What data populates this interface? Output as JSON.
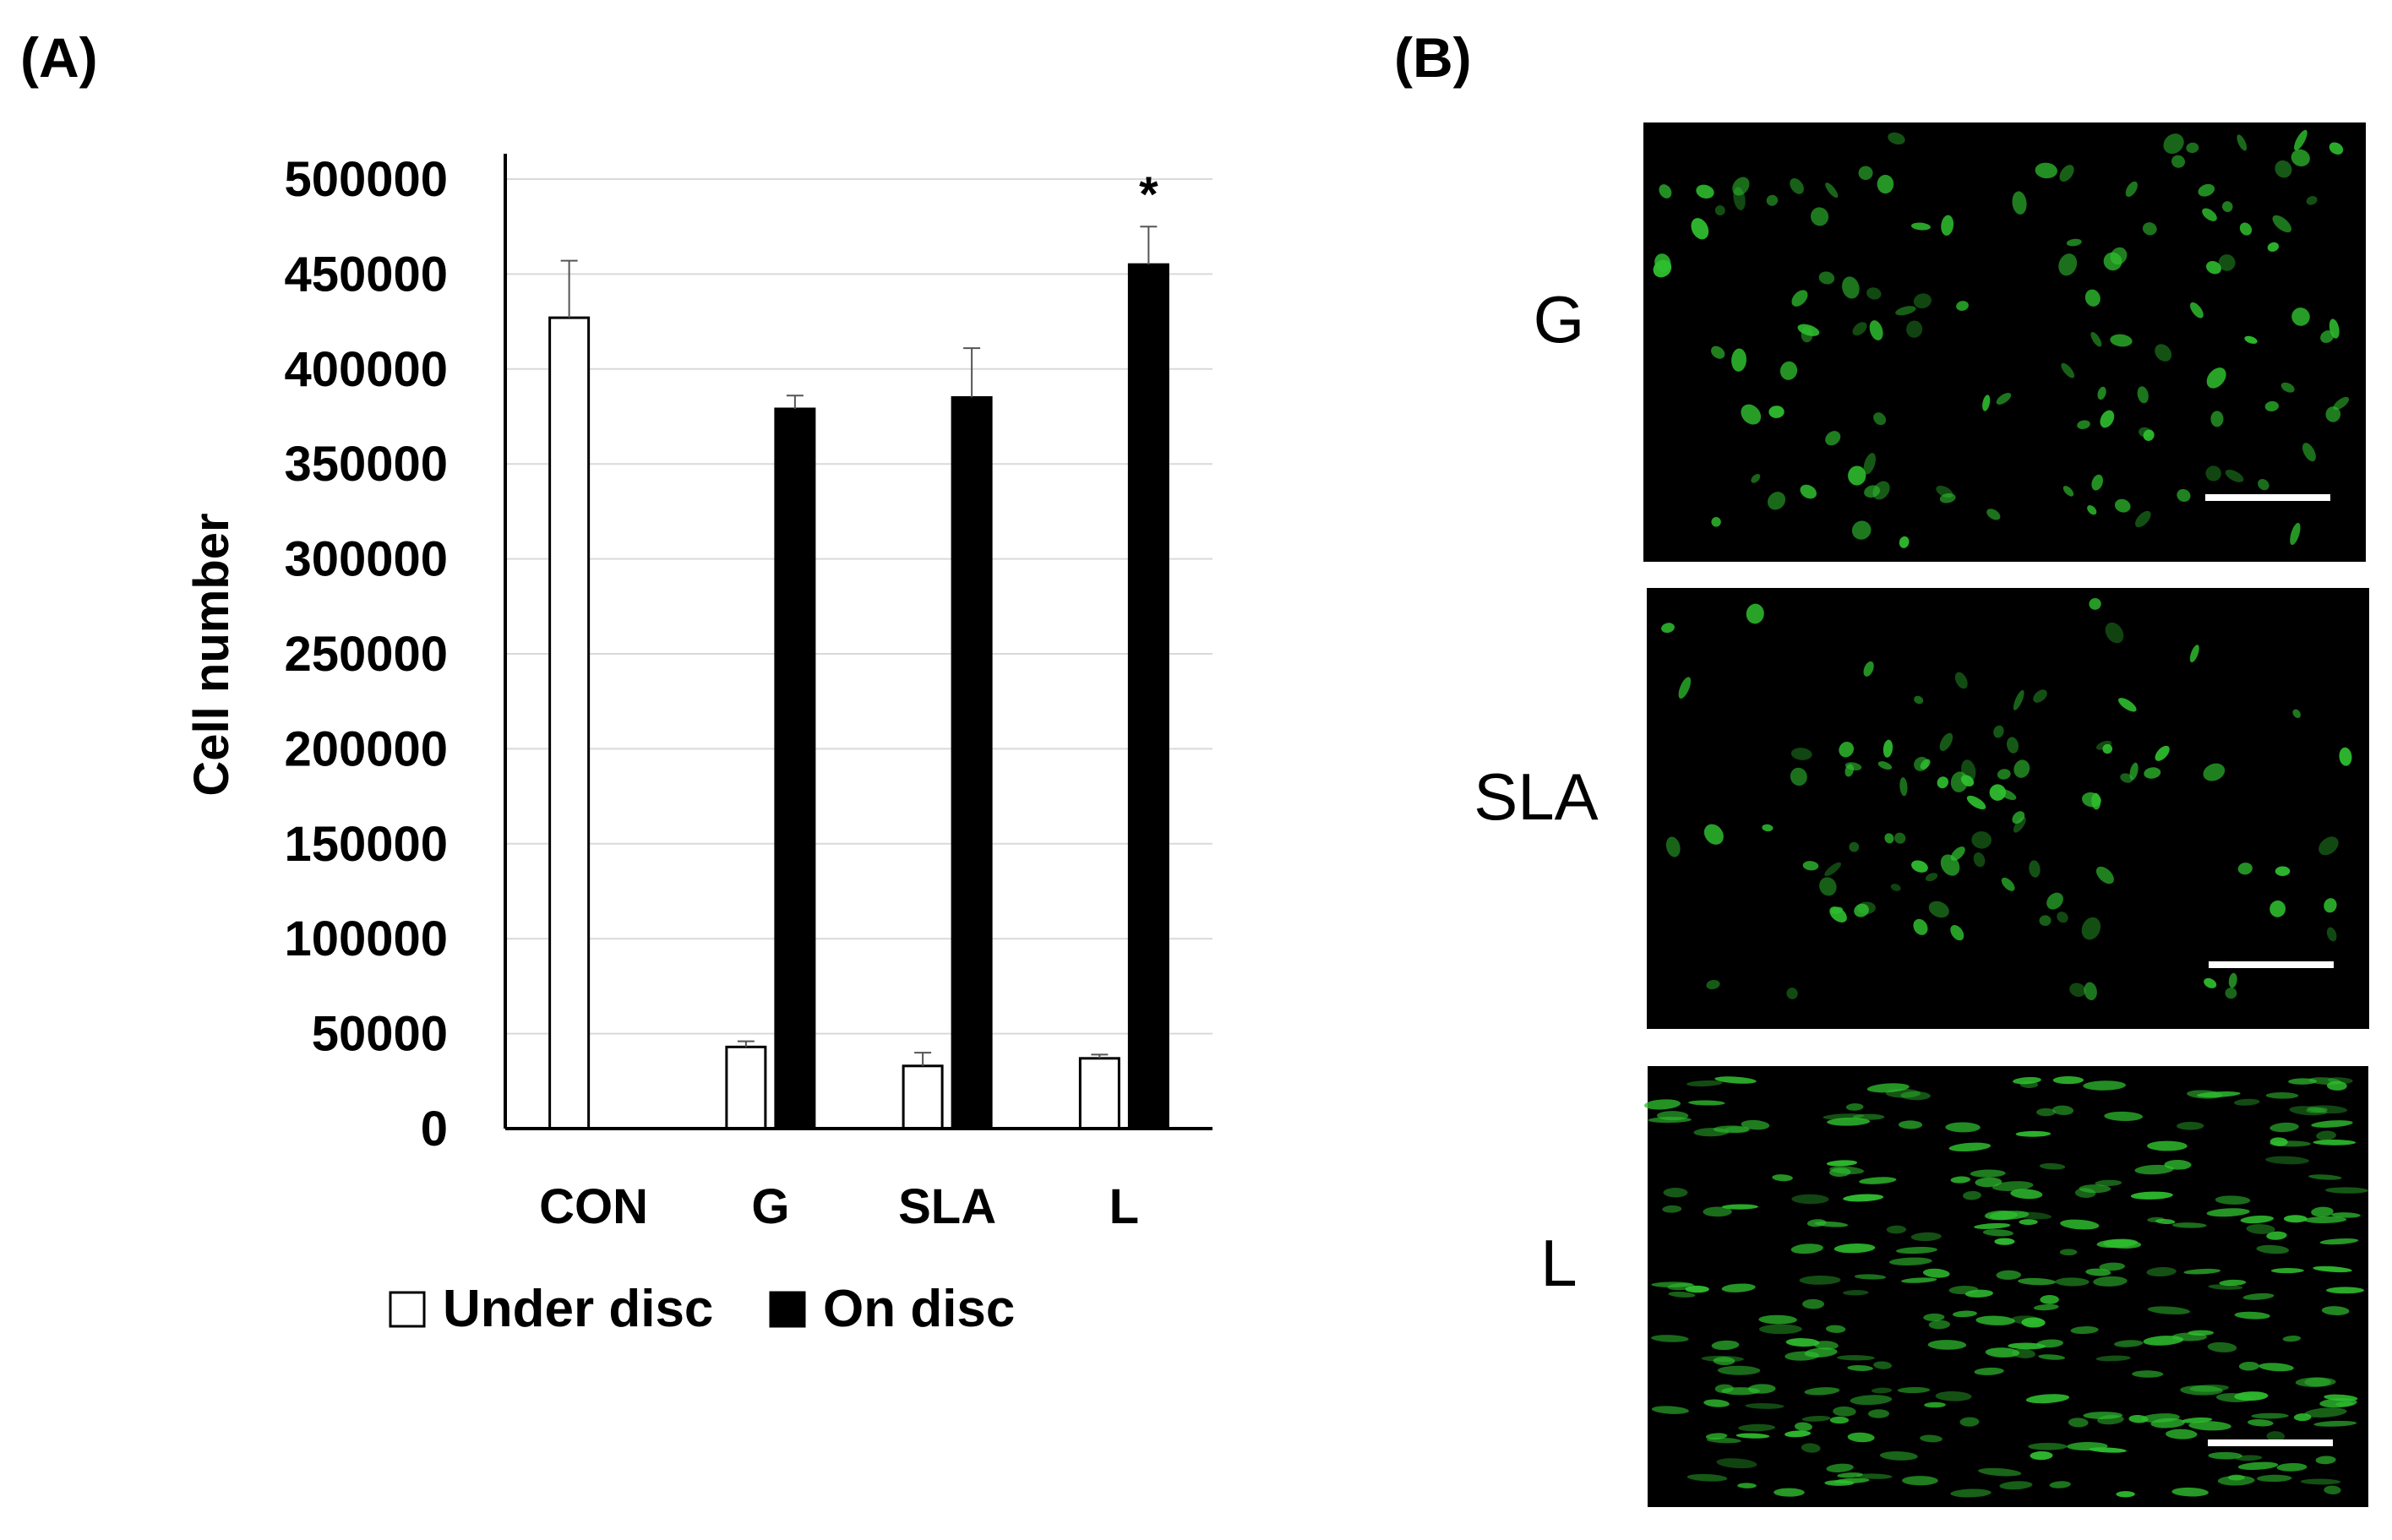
{
  "panel_labels": {
    "a": "(A)",
    "b": "(B)"
  },
  "chart_data": {
    "type": "bar",
    "categories": [
      "CON",
      "G",
      "SLA",
      "L"
    ],
    "ylabel": "Cell number",
    "ylim": [
      0,
      500000
    ],
    "yticks": [
      0,
      50000,
      100000,
      150000,
      200000,
      250000,
      300000,
      350000,
      400000,
      450000,
      500000
    ],
    "grid": true,
    "legend_placement": "bottom",
    "series": [
      {
        "name": "Under disc",
        "fill": "#ffffff",
        "stroke": "#000000",
        "values": [
          427000,
          43000,
          33000,
          37000
        ],
        "errors": [
          30000,
          3000,
          7000,
          2000
        ]
      },
      {
        "name": "On disc",
        "fill": "#000000",
        "stroke": "#000000",
        "values": [
          null,
          379000,
          385000,
          455000
        ],
        "errors": [
          null,
          7000,
          26000,
          20000
        ]
      }
    ],
    "annotations": [
      {
        "category": "L",
        "series": "On disc",
        "text": "*"
      }
    ]
  },
  "micrographs": [
    {
      "label": "G",
      "pattern": "scattered",
      "scale_bar": true
    },
    {
      "label": "SLA",
      "pattern": "clustered",
      "scale_bar": true
    },
    {
      "label": "L",
      "pattern": "aligned",
      "scale_bar": true
    }
  ],
  "colors": {
    "cell_green": "#2fbf2f",
    "background": "#000000",
    "grid": "#d9d9d9"
  }
}
